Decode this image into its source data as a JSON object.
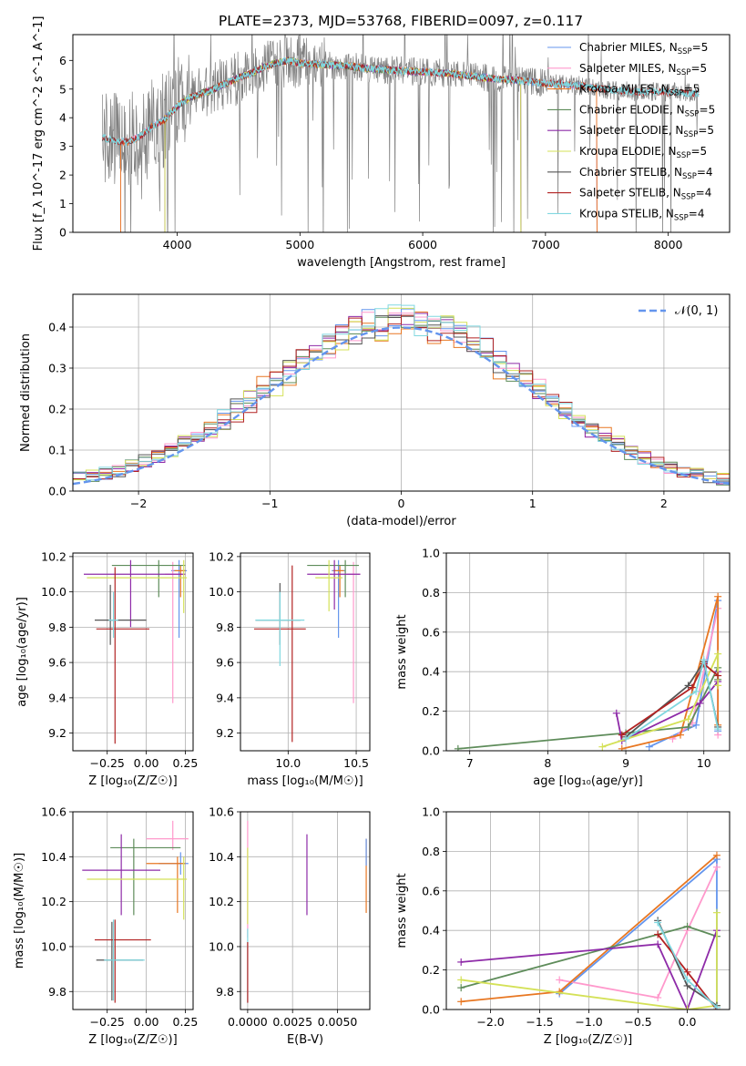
{
  "figure": {
    "title": "PLATE=2373, MJD=53768, FIBERID=0097, z=0.117"
  },
  "colors": {
    "chabrier_miles": "#6495ED",
    "salpeter_miles": "#FF99CC",
    "kroupa_miles": "#E87722",
    "chabrier_elodie": "#5E8C5A",
    "salpeter_elodie": "#8E2BA8",
    "kroupa_elodie": "#D4E157",
    "chabrier_stelib": "#555555",
    "salpeter_stelib": "#B22222",
    "kroupa_stelib": "#80D8E0",
    "normal_curve": "#6495ED",
    "data_gray": "#808080",
    "grid": "#b0b0b0"
  },
  "chart_data": [
    {
      "id": "spectrum",
      "type": "line",
      "xlabel": "wavelength [Angstrom, rest frame]",
      "ylabel": "Flux [f_λ 10^-17 erg cm^-2 s^-1 A^-1]",
      "xlim": [
        3150,
        8500
      ],
      "ylim": [
        0,
        6.9
      ],
      "xticks": [
        4000,
        5000,
        6000,
        7000,
        8000
      ],
      "yticks": [
        0,
        1,
        2,
        3,
        4,
        5,
        6
      ],
      "grid": false,
      "legend_position": "top-right",
      "legend": [
        {
          "label": "Chabrier MILES, N",
          "sub": "SSP",
          "suffix": "=5",
          "color_key": "chabrier_miles"
        },
        {
          "label": "Salpeter MILES, N",
          "sub": "SSP",
          "suffix": "=5",
          "color_key": "salpeter_miles"
        },
        {
          "label": "Kroupa MILES, N",
          "sub": "SSP",
          "suffix": "=5",
          "color_key": "kroupa_miles"
        },
        {
          "label": "Chabrier ELODIE, N",
          "sub": "SSP",
          "suffix": "=5",
          "color_key": "chabrier_elodie"
        },
        {
          "label": "Salpeter ELODIE, N",
          "sub": "SSP",
          "suffix": "=5",
          "color_key": "salpeter_elodie"
        },
        {
          "label": "Kroupa ELODIE, N",
          "sub": "SSP",
          "suffix": "=5",
          "color_key": "kroupa_elodie"
        },
        {
          "label": "Chabrier STELIB, N",
          "sub": "SSP",
          "suffix": "=4",
          "color_key": "chabrier_stelib"
        },
        {
          "label": "Salpeter STELIB, N",
          "sub": "SSP",
          "suffix": "=4",
          "color_key": "salpeter_stelib"
        },
        {
          "label": "Kroupa STELIB, N",
          "sub": "SSP",
          "suffix": "=4",
          "color_key": "kroupa_stelib"
        }
      ],
      "model_continuum": {
        "x": [
          3400,
          3500,
          3600,
          3700,
          3800,
          3900,
          4000,
          4100,
          4200,
          4300,
          4400,
          4500,
          4600,
          4700,
          4800,
          4900,
          5000,
          5200,
          5400,
          5600,
          5800,
          6000,
          6200,
          6400,
          6600,
          6800,
          7000,
          7200,
          7400,
          7600,
          7800,
          8000,
          8200,
          8250
        ],
        "y": [
          3.3,
          3.2,
          3.15,
          3.35,
          3.7,
          3.95,
          4.4,
          4.7,
          4.85,
          5.0,
          5.2,
          5.4,
          5.55,
          5.75,
          5.9,
          6.0,
          5.9,
          5.85,
          5.8,
          5.7,
          5.65,
          5.6,
          5.55,
          5.45,
          5.35,
          5.3,
          5.2,
          5.15,
          5.05,
          4.95,
          4.9,
          4.9,
          4.85,
          4.85
        ]
      }
    },
    {
      "id": "residuals",
      "type": "histogram",
      "xlabel": "(data-model)/error",
      "ylabel": "Normed distribution",
      "xlim": [
        -2.5,
        2.5
      ],
      "ylim": [
        0,
        0.48
      ],
      "xticks": [
        -2,
        -1,
        0,
        1,
        2
      ],
      "yticks": [
        0.0,
        0.1,
        0.2,
        0.3,
        0.4
      ],
      "grid": true,
      "legend_position": "top-right",
      "legend_label": "𝒩(0, 1)",
      "bin_width": 0.1
    },
    {
      "id": "age_vs_Z",
      "type": "errorbar",
      "xlabel": "Z [log₁₀(Z/Z☉)]",
      "ylabel": "age  [log₁₀(age/yr)]",
      "xlim": [
        -0.47,
        0.3
      ],
      "ylim": [
        9.1,
        10.22
      ],
      "xticks": [
        -0.25,
        0.0,
        0.25
      ],
      "yticks": [
        9.2,
        9.4,
        9.6,
        9.8,
        10.0,
        10.2
      ],
      "grid": true,
      "points": [
        {
          "c": "chabrier_miles",
          "x": 0.21,
          "xe": [
            0.05,
            0.05
          ],
          "y": 10.12,
          "ye": [
            0.38,
            0.06
          ]
        },
        {
          "c": "salpeter_miles",
          "x": 0.17,
          "xe": [
            0.05,
            0.06
          ],
          "y": 10.1,
          "ye": [
            0.73,
            0.07
          ]
        },
        {
          "c": "kroupa_miles",
          "x": 0.22,
          "xe": [
            0.04,
            0.03
          ],
          "y": 10.12,
          "ye": [
            0.15,
            0.03
          ]
        },
        {
          "c": "chabrier_elodie",
          "x": 0.08,
          "xe": [
            0.3,
            0.17
          ],
          "y": 10.15,
          "ye": [
            0.18,
            0.03
          ]
        },
        {
          "c": "salpeter_elodie",
          "x": -0.1,
          "xe": [
            0.3,
            0.35
          ],
          "y": 10.1,
          "ye": [
            0.3,
            0.08
          ]
        },
        {
          "c": "kroupa_elodie",
          "x": 0.24,
          "xe": [
            0.62,
            0.02
          ],
          "y": 10.08,
          "ye": [
            0.2,
            0.1
          ]
        },
        {
          "c": "chabrier_stelib",
          "x": -0.23,
          "xe": [
            0.1,
            0.23
          ],
          "y": 9.84,
          "ye": [
            0.14,
            0.2
          ]
        },
        {
          "c": "salpeter_stelib",
          "x": -0.2,
          "xe": [
            0.12,
            0.22
          ],
          "y": 9.79,
          "ye": [
            0.65,
            0.35
          ]
        },
        {
          "c": "kroupa_stelib",
          "x": -0.21,
          "xe": [
            0.03,
            0.03
          ],
          "y": 9.84,
          "ye": [
            0.1,
            0.16
          ]
        }
      ]
    },
    {
      "id": "age_vs_mass",
      "type": "errorbar",
      "xlabel": "mass [log₁₀(M/M☉)]",
      "ylabel": "",
      "xlim": [
        9.65,
        10.6
      ],
      "ylim": [
        9.1,
        10.22
      ],
      "xticks": [
        10.0,
        10.5
      ],
      "yticks": [
        9.2,
        9.4,
        9.6,
        9.8,
        10.0,
        10.2
      ],
      "grid": true,
      "points": [
        {
          "c": "chabrier_miles",
          "x": 10.37,
          "xe": [
            0.05,
            0.05
          ],
          "y": 10.12,
          "ye": [
            0.38,
            0.06
          ]
        },
        {
          "c": "salpeter_miles",
          "x": 10.48,
          "xe": [
            0.05,
            0.05
          ],
          "y": 10.1,
          "ye": [
            0.73,
            0.07
          ]
        },
        {
          "c": "kroupa_miles",
          "x": 10.38,
          "xe": [
            0.05,
            0.03
          ],
          "y": 10.12,
          "ye": [
            0.15,
            0.03
          ]
        },
        {
          "c": "chabrier_elodie",
          "x": 10.42,
          "xe": [
            0.28,
            0.1
          ],
          "y": 10.15,
          "ye": [
            0.18,
            0.03
          ]
        },
        {
          "c": "salpeter_elodie",
          "x": 10.34,
          "xe": [
            0.2,
            0.19
          ],
          "y": 10.1,
          "ye": [
            0.2,
            0.08
          ]
        },
        {
          "c": "kroupa_elodie",
          "x": 10.3,
          "xe": [
            0.1,
            0.1
          ],
          "y": 10.08,
          "ye": [
            0.19,
            0.1
          ]
        },
        {
          "c": "chabrier_stelib",
          "x": 9.94,
          "xe": [
            0.18,
            0.15
          ],
          "y": 9.84,
          "ye": [
            0.14,
            0.21
          ]
        },
        {
          "c": "salpeter_stelib",
          "x": 10.03,
          "xe": [
            0.28,
            0.1
          ],
          "y": 9.79,
          "ye": [
            0.64,
            0.36
          ]
        },
        {
          "c": "kroupa_stelib",
          "x": 9.94,
          "xe": [
            0.18,
            0.18
          ],
          "y": 9.84,
          "ye": [
            0.26,
            0.16
          ]
        }
      ]
    },
    {
      "id": "weight_vs_age",
      "type": "line",
      "xlabel": "age  [log₁₀(age/yr)]",
      "ylabel": "mass weight",
      "xlim": [
        6.7,
        10.33
      ],
      "ylim": [
        0,
        1.0
      ],
      "xticks": [
        7,
        8,
        9,
        10
      ],
      "yticks": [
        0.0,
        0.2,
        0.4,
        0.6,
        0.8,
        1.0
      ],
      "grid": true,
      "series": [
        {
          "c": "chabrier_miles",
          "x": [
            9.3,
            9.9,
            10.18,
            10.18
          ],
          "y": [
            0.02,
            0.13,
            0.76,
            0.1
          ]
        },
        {
          "c": "salpeter_miles",
          "x": [
            9.6,
            9.85,
            10.18,
            10.18
          ],
          "y": [
            0.06,
            0.14,
            0.72,
            0.08
          ]
        },
        {
          "c": "kroupa_miles",
          "x": [
            8.95,
            9.7,
            10.18,
            10.18
          ],
          "y": [
            0.01,
            0.08,
            0.78,
            0.13
          ]
        },
        {
          "c": "chabrier_elodie",
          "x": [
            6.85,
            9.0,
            9.8,
            10.18,
            10.18
          ],
          "y": [
            0.01,
            0.09,
            0.12,
            0.42,
            0.36
          ]
        },
        {
          "c": "salpeter_elodie",
          "x": [
            8.88,
            8.95,
            9.95,
            10.18,
            10.18
          ],
          "y": [
            0.19,
            0.05,
            0.24,
            0.35,
            0.4
          ]
        },
        {
          "c": "kroupa_elodie",
          "x": [
            8.7,
            9.8,
            10.18,
            10.18
          ],
          "y": [
            0.02,
            0.16,
            0.49,
            0.33
          ]
        },
        {
          "c": "chabrier_stelib",
          "x": [
            9.0,
            9.8,
            10.0,
            10.18
          ],
          "y": [
            0.07,
            0.33,
            0.45,
            0.12
          ]
        },
        {
          "c": "salpeter_stelib",
          "x": [
            8.95,
            9.85,
            10.0,
            10.18
          ],
          "y": [
            0.08,
            0.32,
            0.44,
            0.38
          ]
        },
        {
          "c": "kroupa_stelib",
          "x": [
            9.0,
            9.9,
            10.0,
            10.18
          ],
          "y": [
            0.06,
            0.3,
            0.46,
            0.11
          ]
        }
      ]
    },
    {
      "id": "mass_vs_Z",
      "type": "errorbar",
      "xlabel": "Z [log₁₀(Z/Z☉)]",
      "ylabel": "mass [log₁₀(M/M☉)]",
      "xlim": [
        -0.47,
        0.3
      ],
      "ylim": [
        9.72,
        10.6
      ],
      "xticks": [
        -0.25,
        0.0,
        0.25
      ],
      "yticks": [
        9.8,
        10.0,
        10.2,
        10.4,
        10.6
      ],
      "grid": true,
      "points": [
        {
          "c": "chabrier_miles",
          "x": 0.22,
          "xe": [
            0.14,
            0.05
          ],
          "y": 10.37,
          "ye": [
            0.05,
            0.05
          ]
        },
        {
          "c": "salpeter_miles",
          "x": 0.17,
          "xe": [
            0.17,
            0.1
          ],
          "y": 10.48,
          "ye": [
            0.05,
            0.08
          ]
        },
        {
          "c": "kroupa_miles",
          "x": 0.2,
          "xe": [
            0.2,
            0.05
          ],
          "y": 10.37,
          "ye": [
            0.22,
            0.03
          ]
        },
        {
          "c": "chabrier_elodie",
          "x": -0.08,
          "xe": [
            0.15,
            0.3
          ],
          "y": 10.44,
          "ye": [
            0.3,
            0.04
          ]
        },
        {
          "c": "salpeter_elodie",
          "x": -0.16,
          "xe": [
            0.25,
            0.25
          ],
          "y": 10.34,
          "ye": [
            0.2,
            0.16
          ]
        },
        {
          "c": "kroupa_elodie",
          "x": 0.24,
          "xe": [
            0.62,
            0.02
          ],
          "y": 10.3,
          "ye": [
            0.18,
            0.1
          ]
        },
        {
          "c": "chabrier_stelib",
          "x": -0.22,
          "xe": [
            0.1,
            0.2
          ],
          "y": 9.94,
          "ye": [
            0.18,
            0.17
          ]
        },
        {
          "c": "salpeter_stelib",
          "x": -0.2,
          "xe": [
            0.13,
            0.23
          ],
          "y": 10.03,
          "ye": [
            0.28,
            0.09
          ]
        },
        {
          "c": "kroupa_stelib",
          "x": -0.21,
          "xe": [
            0.06,
            0.2
          ],
          "y": 9.94,
          "ye": [
            0.18,
            0.18
          ]
        }
      ]
    },
    {
      "id": "mass_vs_ebv",
      "type": "errorbar",
      "xlabel": "E(B-V)",
      "ylabel": "",
      "xlim": [
        -0.0004,
        0.0068
      ],
      "ylim": [
        9.72,
        10.6
      ],
      "xticks": [
        0.0,
        0.0025,
        0.005
      ],
      "yticks": [
        9.8,
        10.0,
        10.2,
        10.4,
        10.6
      ],
      "grid": true,
      "points": [
        {
          "c": "salpeter_miles",
          "x": 0.0,
          "xe": [
            0,
            0
          ],
          "y": 10.3,
          "ye": [
            0.26,
            0.26
          ]
        },
        {
          "c": "kroupa_elodie",
          "x": 0.0,
          "xe": [
            0,
            0
          ],
          "y": 10.2,
          "ye": [
            0.1,
            0.24
          ]
        },
        {
          "c": "kroupa_stelib",
          "x": 0.0,
          "xe": [
            0,
            0
          ],
          "y": 9.92,
          "ye": [
            0.17,
            0.16
          ]
        },
        {
          "c": "salpeter_stelib",
          "x": 0.0,
          "xe": [
            0,
            0
          ],
          "y": 9.9,
          "ye": [
            0.15,
            0.12
          ]
        },
        {
          "c": "salpeter_elodie",
          "x": 0.0033,
          "xe": [
            0,
            0
          ],
          "y": 10.32,
          "ye": [
            0.18,
            0.18
          ]
        },
        {
          "c": "kroupa_miles",
          "x": 0.0066,
          "xe": [
            0,
            0
          ],
          "y": 10.32,
          "ye": [
            0.17,
            0.16
          ]
        },
        {
          "c": "chabrier_miles",
          "x": 0.0066,
          "xe": [
            0,
            0
          ],
          "y": 10.42,
          "ye": [
            0.06,
            0.06
          ]
        }
      ]
    },
    {
      "id": "weight_vs_Z",
      "type": "line",
      "xlabel": "Z [log₁₀(Z/Z☉)]",
      "ylabel": "mass weight",
      "xlim": [
        -2.45,
        0.43
      ],
      "ylim": [
        0,
        1.0
      ],
      "xticks": [
        -2.0,
        -1.5,
        -1.0,
        -0.5,
        0.0
      ],
      "yticks": [
        0.0,
        0.2,
        0.4,
        0.6,
        0.8,
        1.0
      ],
      "grid": true,
      "series": [
        {
          "c": "chabrier_miles",
          "x": [
            -1.3,
            0.3,
            0.3
          ],
          "y": [
            0.08,
            0.76,
            0.02
          ]
        },
        {
          "c": "salpeter_miles",
          "x": [
            -1.3,
            -0.3,
            0.0,
            0.3
          ],
          "y": [
            0.15,
            0.06,
            0.4,
            0.72
          ]
        },
        {
          "c": "kroupa_miles",
          "x": [
            -2.3,
            -1.3,
            0.3
          ],
          "y": [
            0.04,
            0.09,
            0.78
          ]
        },
        {
          "c": "chabrier_elodie",
          "x": [
            -2.3,
            0.0,
            0.3
          ],
          "y": [
            0.11,
            0.42,
            0.37
          ]
        },
        {
          "c": "salpeter_elodie",
          "x": [
            -2.3,
            -0.3,
            0.0,
            0.3
          ],
          "y": [
            0.24,
            0.33,
            0.0,
            0.4
          ]
        },
        {
          "c": "kroupa_elodie",
          "x": [
            -2.3,
            0.0,
            0.3,
            0.3
          ],
          "y": [
            0.15,
            0.0,
            0.02,
            0.49
          ]
        },
        {
          "c": "chabrier_stelib",
          "x": [
            -0.3,
            0.0,
            0.3
          ],
          "y": [
            0.45,
            0.12,
            0.02
          ]
        },
        {
          "c": "salpeter_stelib",
          "x": [
            -0.3,
            0.0,
            0.3
          ],
          "y": [
            0.38,
            0.19,
            0.0
          ]
        },
        {
          "c": "kroupa_stelib",
          "x": [
            -0.3,
            0.0,
            0.3
          ],
          "y": [
            0.44,
            0.15,
            0.01
          ]
        }
      ]
    }
  ]
}
